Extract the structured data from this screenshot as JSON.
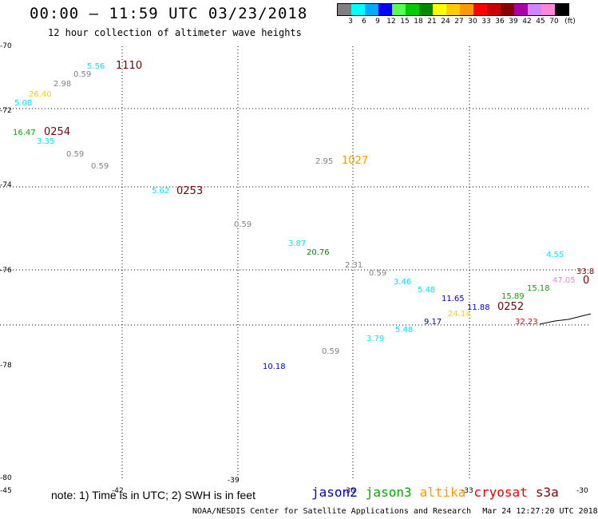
{
  "header": {
    "title": "00:00 – 11:59 UTC 03/23/2018",
    "subtitle": "12 hour collection of altimeter wave heights"
  },
  "legend": {
    "unit": "(ft)",
    "colors": [
      "#808080",
      "#00ffff",
      "#00aaff",
      "#0000ff",
      "#55ff55",
      "#00cc00",
      "#008800",
      "#ffff00",
      "#ffcc00",
      "#ff9900",
      "#ff0000",
      "#cc0000",
      "#880000",
      "#aa00aa",
      "#cc88ff",
      "#ff88dd",
      "#000000"
    ],
    "labels": [
      "3",
      "6",
      "9",
      "12",
      "15",
      "18",
      "21",
      "24",
      "27",
      "30",
      "33",
      "36",
      "39",
      "42",
      "45",
      "70"
    ]
  },
  "chart_data": {
    "type": "scatter",
    "lat_ticks": [
      "-70",
      "-72",
      "-74",
      "-76",
      "-78",
      "-80"
    ],
    "lon_ticks": [
      "-45",
      "-42",
      "-39",
      "-36",
      "-33",
      "-30"
    ],
    "grid": "dotted",
    "points": [
      {
        "label": "5.56",
        "color": "#00e5ff"
      },
      {
        "label": "1110",
        "color": "#7a0000"
      },
      {
        "label": "0.59",
        "color": "#808080"
      },
      {
        "label": "2.98",
        "color": "#808080"
      },
      {
        "label": "26.40",
        "color": "#ffcc00"
      },
      {
        "label": "5.08",
        "color": "#00e5ff"
      },
      {
        "label": "16.47",
        "color": "#00aa00"
      },
      {
        "label": "0254",
        "color": "#7a0000"
      },
      {
        "label": "3.35",
        "color": "#00e5ff"
      },
      {
        "label": "0.59",
        "color": "#808080"
      },
      {
        "label": "0.59",
        "color": "#808080"
      },
      {
        "label": "2.95",
        "color": "#808080"
      },
      {
        "label": "1027",
        "color": "#ff9900"
      },
      {
        "label": "5.62",
        "color": "#00e5ff"
      },
      {
        "label": "0253",
        "color": "#7a0000"
      },
      {
        "label": "0.59",
        "color": "#808080"
      },
      {
        "label": "3.87",
        "color": "#00e5ff"
      },
      {
        "label": "20.76",
        "color": "#008800"
      },
      {
        "label": "2.31",
        "color": "#808080"
      },
      {
        "label": "0.59",
        "color": "#808080"
      },
      {
        "label": "3.46",
        "color": "#00e5ff"
      },
      {
        "label": "5.48",
        "color": "#00e5ff"
      },
      {
        "label": "11.65",
        "color": "#0000cc"
      },
      {
        "label": "11.88",
        "color": "#0000cc"
      },
      {
        "label": "0252",
        "color": "#7a0000"
      },
      {
        "label": "15.89",
        "color": "#00aa00"
      },
      {
        "label": "15.18",
        "color": "#00aa00"
      },
      {
        "label": "4.55",
        "color": "#00e5ff"
      },
      {
        "label": "47.05",
        "color": "#dd88ee"
      },
      {
        "label": "33.8",
        "color": "#7a0000"
      },
      {
        "label": "0",
        "color": "#7a0000"
      },
      {
        "label": "9.17",
        "color": "#0000cc"
      },
      {
        "label": "24.14",
        "color": "#ffcc00"
      },
      {
        "label": "32.23",
        "color": "#ee0000"
      },
      {
        "label": "5.48",
        "color": "#00e5ff"
      },
      {
        "label": "3.79",
        "color": "#00e5ff"
      },
      {
        "label": "0.59",
        "color": "#808080"
      },
      {
        "label": "10.18",
        "color": "#0000cc"
      }
    ]
  },
  "footer": {
    "note": "note: 1) Time is in UTC; 2) SWH is in feet",
    "satellites": [
      {
        "name": "jason2",
        "color": "#0000cc"
      },
      {
        "name": "jason3",
        "color": "#00aa00"
      },
      {
        "name": "altika",
        "color": "#ff9900"
      },
      {
        "name": "cryosat",
        "color": "#ee0000"
      },
      {
        "name": "s3a",
        "color": "#880000"
      }
    ],
    "credit": "NOAA/NESDIS Center for Satellite Applications and Research",
    "timestamp": "Mar 24 12:27:20 UTC 2018"
  }
}
